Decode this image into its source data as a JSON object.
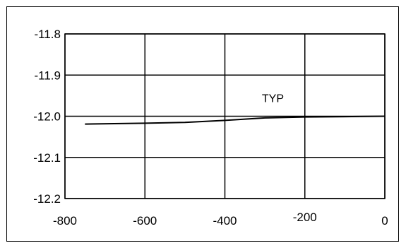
{
  "chart_data": {
    "type": "line",
    "title": "",
    "xlabel": "",
    "ylabel": "",
    "xlim": [
      -800,
      0
    ],
    "ylim": [
      -12.2,
      -11.8
    ],
    "y_inverted": true,
    "grid": true,
    "x_ticks": [
      -800,
      -600,
      -400,
      -200,
      0
    ],
    "x_tick_labels": [
      "-800",
      "-600",
      "-400",
      "-200",
      "0"
    ],
    "y_ticks": [
      -11.8,
      -11.9,
      -12.0,
      -12.1,
      -12.2
    ],
    "y_tick_labels": [
      "-11.8",
      "-11.9",
      "-12.0",
      "-12.1",
      "-12.2"
    ],
    "series": [
      {
        "x": [
          -750,
          -600,
          -500,
          -400,
          -300,
          -200,
          -100,
          0
        ],
        "y": [
          -12.019,
          -12.017,
          -12.015,
          -12.01,
          -12.004,
          -12.002,
          -12.001,
          -12.0
        ],
        "color": "#000000"
      }
    ],
    "annotations": [
      {
        "text": "TYP",
        "x": -280,
        "y": -11.955
      }
    ]
  }
}
